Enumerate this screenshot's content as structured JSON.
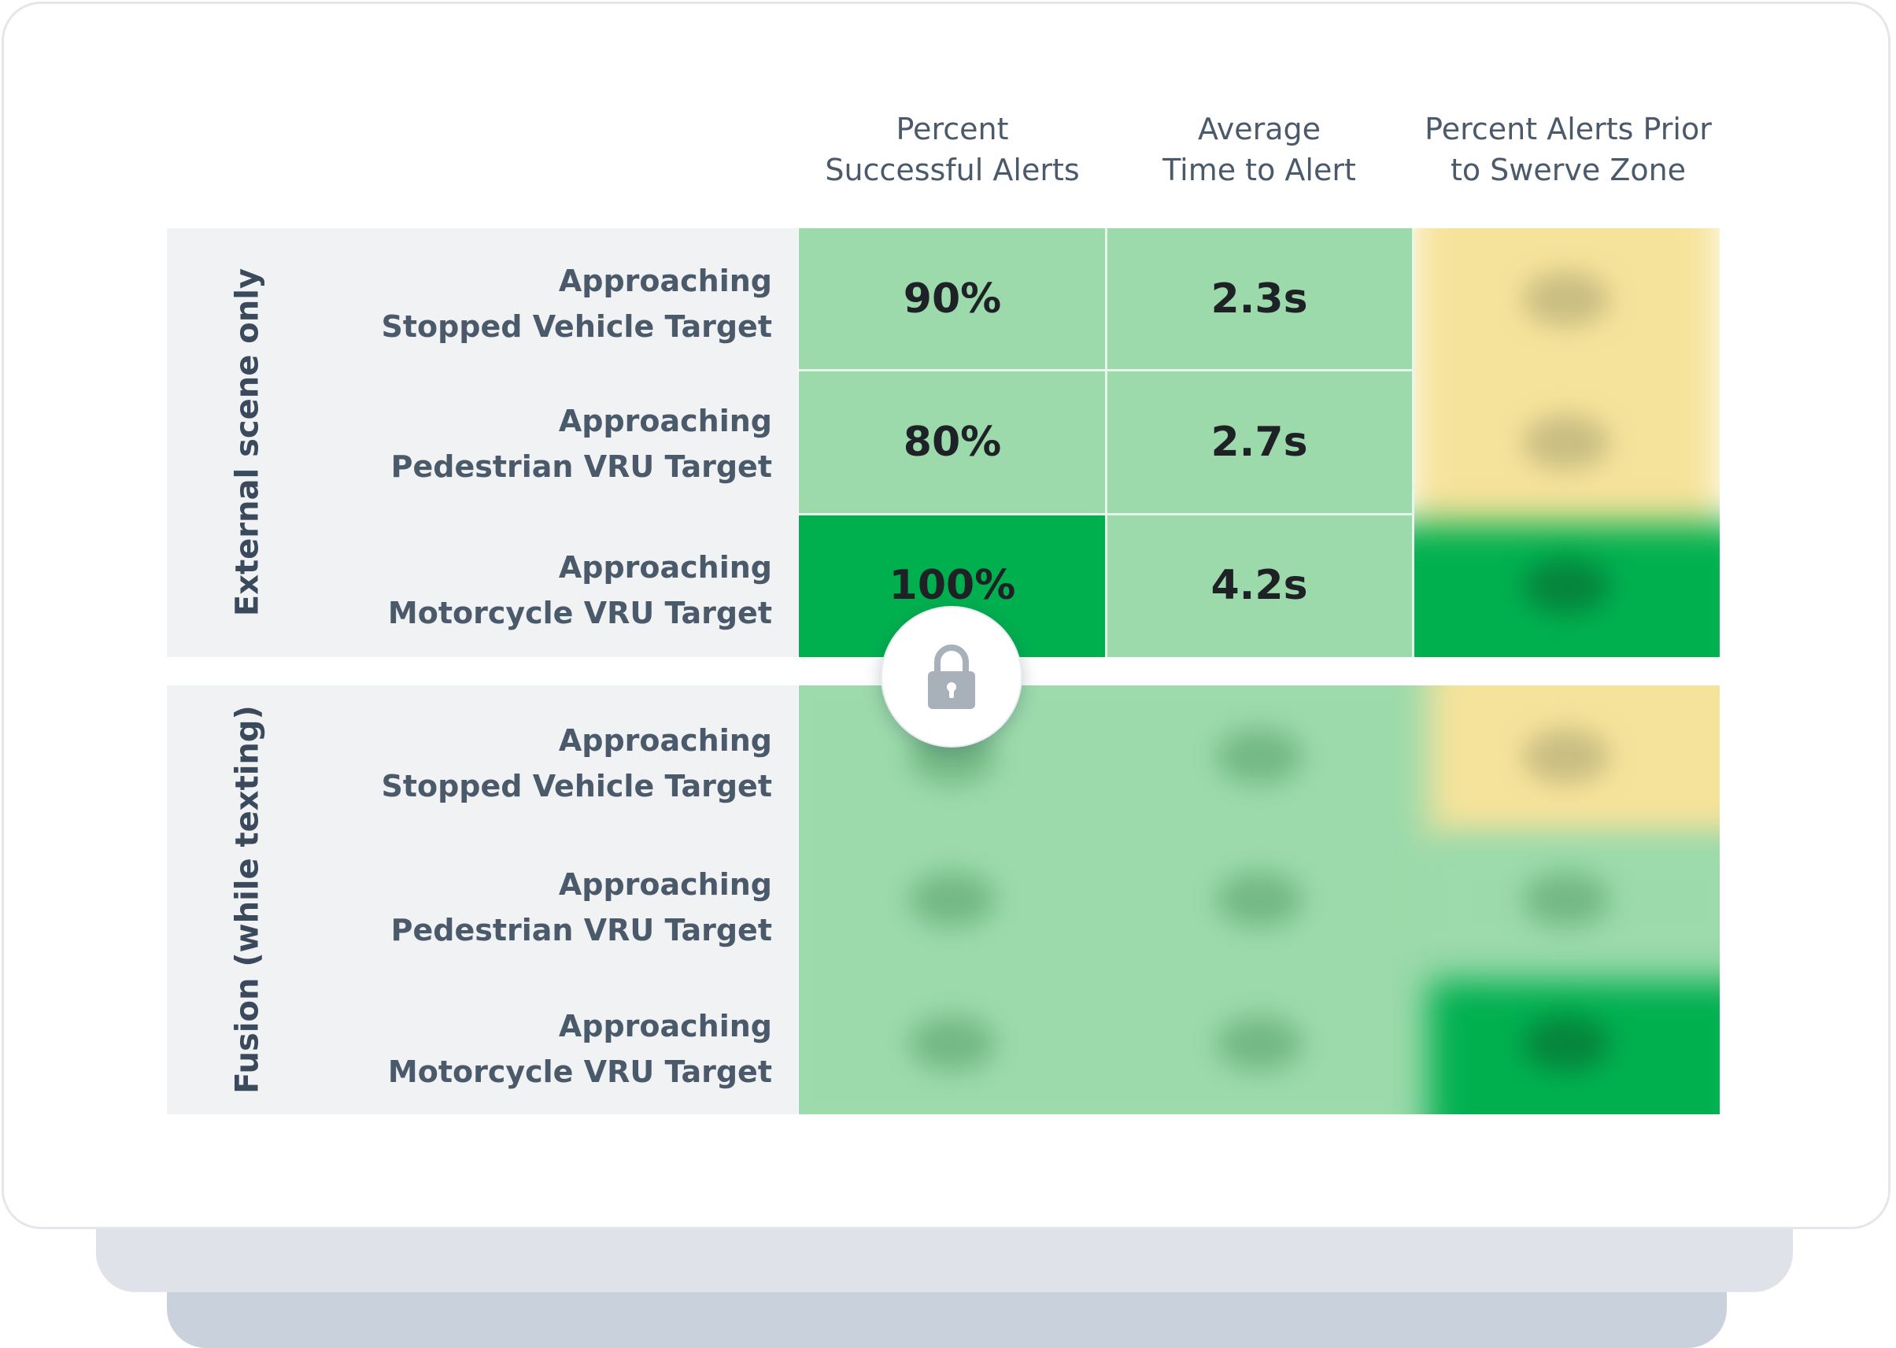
{
  "chart_data": {
    "type": "table",
    "title": "",
    "columns": [
      {
        "line1": "Percent",
        "line2": "Successful Alerts"
      },
      {
        "line1": "Average",
        "line2": "Time to Alert"
      },
      {
        "line1": "Percent Alerts Prior",
        "line2": "to Swerve Zone"
      }
    ],
    "groups": [
      {
        "name": "External scene only",
        "rows": [
          {
            "line1": "Approaching",
            "line2": "Stopped Vehicle Target",
            "values": [
              "90%",
              "2.3s",
              null
            ],
            "colors": [
              "light",
              "light",
              "yellow"
            ]
          },
          {
            "line1": "Approaching",
            "line2": "Pedestrian VRU Target",
            "values": [
              "80%",
              "2.7s",
              null
            ],
            "colors": [
              "light",
              "light",
              "yellow"
            ]
          },
          {
            "line1": "Approaching",
            "line2": "Motorcycle VRU Target",
            "values": [
              "100%",
              "4.2s",
              null
            ],
            "colors": [
              "dark",
              "light",
              "dark"
            ]
          }
        ]
      },
      {
        "name": "Fusion (while texting)",
        "rows": [
          {
            "line1": "Approaching",
            "line2": "Stopped Vehicle Target",
            "values": [
              null,
              null,
              null
            ],
            "colors": [
              "light",
              "light",
              "yellow"
            ]
          },
          {
            "line1": "Approaching",
            "line2": "Pedestrian VRU Target",
            "values": [
              null,
              null,
              null
            ],
            "colors": [
              "light",
              "light",
              "light"
            ]
          },
          {
            "line1": "Approaching",
            "line2": "Motorcycle VRU Target",
            "values": [
              null,
              null,
              null
            ],
            "colors": [
              "light",
              "light",
              "dark"
            ]
          }
        ]
      }
    ],
    "palette": {
      "light": "#9cdaab",
      "dark": "#00b04f",
      "yellow": "#f6e39b",
      "panel": "#f1f2f4"
    }
  },
  "lock": {
    "icon": "lock-icon",
    "color": "#a8b0ba"
  }
}
